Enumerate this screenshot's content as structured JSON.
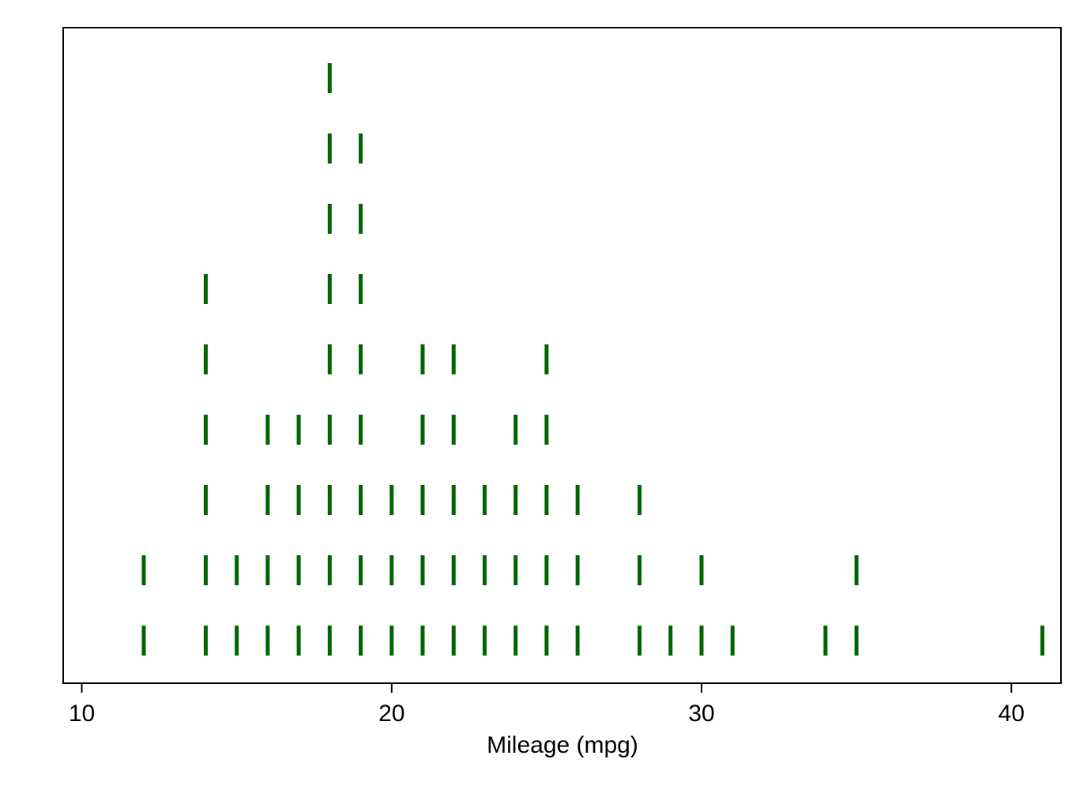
{
  "chart_data": {
    "type": "dotplot",
    "xlabel": "Mileage (mpg)",
    "xlim": [
      9.4,
      41.6
    ],
    "xticks": [
      10,
      20,
      30,
      40
    ],
    "xtick_labels": [
      "10",
      "20",
      "30",
      "40"
    ],
    "grid": false,
    "marker": "vertical-bar",
    "marker_color": "#006400",
    "series": [
      {
        "values": [
          12,
          12,
          14,
          14,
          14,
          14,
          14,
          14,
          15,
          15,
          16,
          16,
          16,
          16,
          17,
          17,
          17,
          17,
          18,
          18,
          18,
          18,
          18,
          18,
          18,
          18,
          18,
          19,
          19,
          19,
          19,
          19,
          19,
          19,
          19,
          20,
          20,
          20,
          21,
          21,
          21,
          21,
          21,
          22,
          22,
          22,
          22,
          22,
          23,
          23,
          23,
          24,
          24,
          24,
          24,
          25,
          25,
          25,
          25,
          25,
          26,
          26,
          26,
          28,
          28,
          28,
          29,
          30,
          30,
          31,
          34,
          35,
          35,
          41
        ]
      }
    ]
  }
}
